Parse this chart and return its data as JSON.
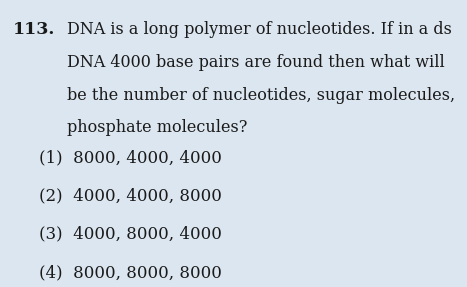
{
  "background_color": "#dce6f0",
  "question_number": "113.",
  "question_lines": [
    "DNA is a long polymer of nucleotides. If in a ds",
    "DNA 4000 base pairs are found then what will",
    "be the number of nucleotides, sugar molecules,",
    "phosphate molecules?"
  ],
  "options": [
    "(1)  8000, 4000, 4000",
    "(2)  4000, 4000, 8000",
    "(3)  4000, 8000, 4000",
    "(4)  8000, 8000, 8000"
  ],
  "text_color": "#1a1a1a",
  "question_fontsize": 11.5,
  "option_fontsize": 12.0,
  "qnum_fontsize": 12.5
}
